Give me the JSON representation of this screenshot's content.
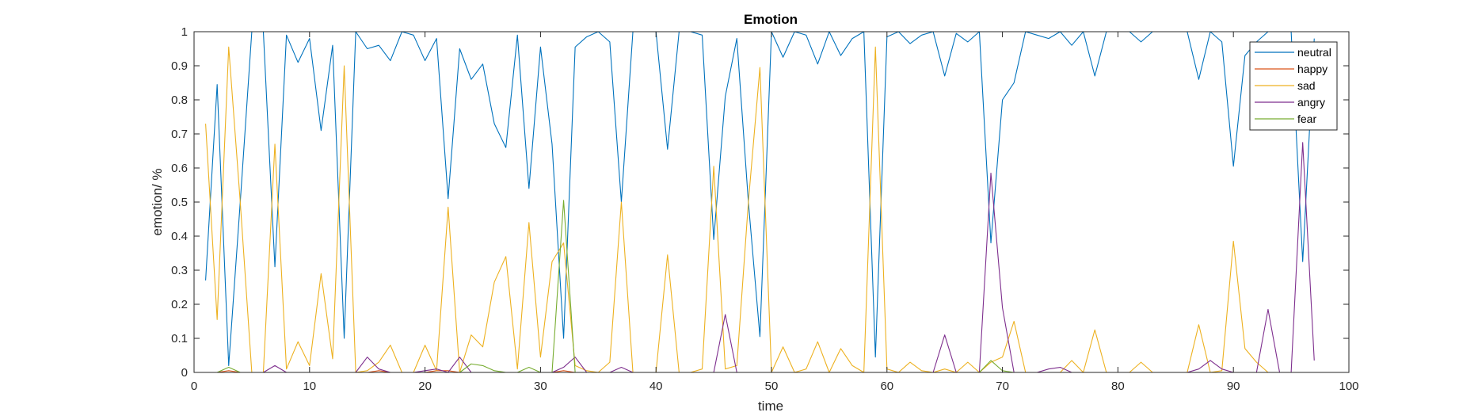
{
  "chart_data": {
    "type": "line",
    "title": "Emotion",
    "xlabel": "time",
    "ylabel": "emotion/ %",
    "xlim": [
      0,
      100
    ],
    "ylim": [
      0,
      1
    ],
    "xticks": [
      0,
      10,
      20,
      30,
      40,
      50,
      60,
      70,
      80,
      90,
      100
    ],
    "xtick_labels": [
      "0",
      "10",
      "20",
      "30",
      "40",
      "50",
      "60",
      "70",
      "80",
      "90",
      "100"
    ],
    "yticks": [
      0,
      0.1,
      0.2,
      0.3,
      0.4,
      0.5,
      0.6,
      0.7,
      0.8,
      0.9,
      1
    ],
    "ytick_labels": [
      "0",
      "0.1",
      "0.2",
      "0.3",
      "0.4",
      "0.5",
      "0.6",
      "0.7",
      "0.8",
      "0.9",
      "1"
    ],
    "grid": false,
    "legend_position": "top-right",
    "x": [
      1,
      2,
      3,
      4,
      5,
      6,
      7,
      8,
      9,
      10,
      11,
      12,
      13,
      14,
      15,
      16,
      17,
      18,
      19,
      20,
      21,
      22,
      23,
      24,
      25,
      26,
      27,
      28,
      29,
      30,
      31,
      32,
      33,
      34,
      35,
      36,
      37,
      38,
      39,
      40,
      41,
      42,
      43,
      44,
      45,
      46,
      47,
      48,
      49,
      50,
      51,
      52,
      53,
      54,
      55,
      56,
      57,
      58,
      59,
      60,
      61,
      62,
      63,
      64,
      65,
      66,
      67,
      68,
      69,
      70,
      71,
      72,
      73,
      74,
      75,
      76,
      77,
      78,
      79,
      80,
      81,
      82,
      83,
      84,
      85,
      86,
      87,
      88,
      89,
      90,
      91,
      92,
      93,
      94,
      95,
      96,
      97
    ],
    "series": [
      {
        "name": "neutral",
        "color": "#0072BD",
        "values": [
          0.27,
          0.845,
          0.02,
          0.5,
          1.0,
          1.0,
          0.31,
          0.99,
          0.91,
          0.98,
          0.71,
          0.96,
          0.1,
          1.0,
          0.95,
          0.96,
          0.915,
          1.0,
          0.99,
          0.915,
          0.98,
          0.51,
          0.95,
          0.86,
          0.905,
          0.73,
          0.66,
          0.99,
          0.54,
          0.955,
          0.67,
          0.1,
          0.955,
          0.985,
          1.0,
          0.97,
          0.5,
          1.0,
          1.0,
          1.0,
          0.655,
          1.0,
          1.0,
          0.99,
          0.39,
          0.81,
          0.98,
          0.5,
          0.105,
          1.0,
          0.925,
          1.0,
          0.99,
          0.905,
          1.0,
          0.93,
          0.98,
          1.0,
          0.045,
          0.985,
          1.0,
          0.965,
          0.99,
          1.0,
          0.87,
          0.995,
          0.97,
          1.0,
          0.38,
          0.8,
          0.85,
          1.0,
          0.99,
          0.98,
          1.0,
          0.96,
          1.0,
          0.87,
          1.0,
          1.0,
          1.0,
          0.97,
          1.0,
          1.0,
          1.0,
          1.0,
          0.86,
          1.0,
          0.97,
          0.605,
          0.93,
          0.97,
          1.0,
          1.0,
          1.0,
          0.325,
          0.98
        ]
      },
      {
        "name": "happy",
        "color": "#D95319",
        "values": [
          0,
          0,
          0.005,
          0,
          0,
          0,
          0,
          0,
          0,
          0,
          0,
          0,
          0,
          0,
          0,
          0.005,
          0,
          0,
          0,
          0,
          0.005,
          0.005,
          0,
          0,
          0,
          0,
          0,
          0,
          0,
          0,
          0,
          0.005,
          0,
          0,
          0,
          0,
          0,
          0,
          0,
          0,
          0,
          0,
          0,
          0,
          0,
          0,
          0,
          0,
          0,
          0,
          0,
          0,
          0,
          0,
          0,
          0,
          0,
          0,
          0,
          0,
          0,
          0,
          0,
          0,
          0,
          0,
          0,
          0,
          0,
          0,
          0,
          0,
          0,
          0,
          0,
          0,
          0,
          0,
          0,
          0,
          0,
          0,
          0,
          0,
          0,
          0,
          0,
          0,
          0,
          0,
          0,
          0,
          0,
          0,
          0,
          0,
          0
        ]
      },
      {
        "name": "sad",
        "color": "#EDB120",
        "values": [
          0.73,
          0.155,
          0.955,
          0.5,
          0,
          0,
          0.67,
          0.01,
          0.09,
          0.02,
          0.29,
          0.04,
          0.9,
          0,
          0.005,
          0.03,
          0.08,
          0,
          0,
          0.08,
          0.005,
          0.485,
          0,
          0.11,
          0.075,
          0.265,
          0.34,
          0.01,
          0.44,
          0.045,
          0.325,
          0.38,
          0.02,
          0.005,
          0,
          0.03,
          0.5,
          0,
          0,
          0,
          0.345,
          0,
          0,
          0.01,
          0.605,
          0.01,
          0.02,
          0.5,
          0.895,
          0,
          0.075,
          0,
          0.01,
          0.09,
          0,
          0.07,
          0.02,
          0,
          0.955,
          0.01,
          0,
          0.03,
          0.005,
          0,
          0.01,
          0,
          0.03,
          0,
          0.03,
          0.045,
          0.15,
          0,
          0,
          0,
          0,
          0.035,
          0,
          0.125,
          0,
          0,
          0,
          0.03,
          0,
          0,
          0,
          0,
          0.14,
          0,
          0.005,
          0.385,
          0.07,
          0.03,
          0,
          0,
          0,
          0,
          0
        ]
      },
      {
        "name": "angry",
        "color": "#7E2F8E",
        "values": [
          0,
          0,
          0,
          0,
          0,
          0,
          0.02,
          0,
          0,
          0,
          0,
          0,
          0,
          0,
          0.045,
          0.01,
          0,
          0,
          0,
          0.005,
          0.01,
          0,
          0.045,
          0,
          0,
          0,
          0,
          0,
          0,
          0,
          0,
          0.015,
          0.045,
          0,
          0,
          0,
          0.015,
          0,
          0,
          0,
          0,
          0,
          0,
          0,
          0,
          0.17,
          0,
          0,
          0,
          0,
          0,
          0,
          0,
          0,
          0,
          0,
          0,
          0,
          0,
          0,
          0,
          0,
          0,
          0,
          0.11,
          0,
          0,
          0,
          0.585,
          0.19,
          0,
          0,
          0,
          0.01,
          0.015,
          0,
          0,
          0,
          0,
          0,
          0,
          0,
          0,
          0,
          0,
          0,
          0.01,
          0.035,
          0.01,
          0,
          0,
          0,
          0.185,
          0,
          0,
          0.675,
          0.035
        ]
      },
      {
        "name": "fear",
        "color": "#77AC30",
        "values": [
          0,
          0,
          0.015,
          0,
          0,
          0,
          0,
          0,
          0,
          0,
          0,
          0,
          0,
          0,
          0,
          0,
          0,
          0,
          0,
          0,
          0,
          0,
          0,
          0.025,
          0.02,
          0.005,
          0,
          0,
          0.015,
          0,
          0,
          0.505,
          0,
          0,
          0,
          0,
          0,
          0,
          0,
          0,
          0,
          0,
          0,
          0,
          0,
          0,
          0,
          0,
          0,
          0,
          0,
          0,
          0,
          0,
          0,
          0,
          0,
          0,
          0,
          0,
          0,
          0,
          0,
          0,
          0,
          0,
          0,
          0,
          0.035,
          0.005,
          0,
          0,
          0,
          0,
          0,
          0,
          0,
          0,
          0,
          0,
          0,
          0,
          0,
          0,
          0,
          0,
          0,
          0,
          0,
          0,
          0,
          0,
          0,
          0,
          0,
          0,
          0
        ]
      }
    ]
  }
}
